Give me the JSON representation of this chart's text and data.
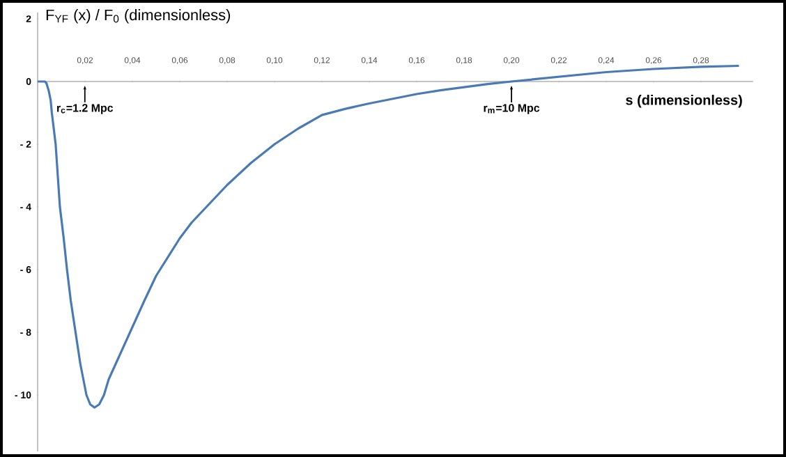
{
  "chart_data": {
    "type": "line",
    "ylabel": "F$_{YF}$ (x) / F$_{0}$      (dimensionless)",
    "xlabel": "s (dimensionless)",
    "annotations": [
      "r$_{c}$=1.2 Mpc",
      {
        "text": "r$_{m}$=10 Mpc",
        "x": 0.2,
        "y": 0
      }
    ],
    "color": "#4a7ab5",
    "x": [
      0,
      0.003,
      0.0037,
      0.0047,
      0.0055,
      0.006,
      0.0068,
      0.0076,
      0.0085,
      0.0094,
      0.011,
      0.0124,
      0.014,
      0.016,
      0.018,
      0.0206,
      0.0222,
      0.024,
      0.026,
      0.028,
      0.03,
      0.033,
      0.039,
      0.045,
      0.05,
      0.06,
      0.065,
      0.07,
      0.075,
      0.08,
      0.09,
      0.1,
      0.11,
      0.12,
      0.13,
      0.14,
      0.15,
      0.16,
      0.17,
      0.18,
      0.19,
      0.2,
      0.22,
      0.24,
      0.26,
      0.28,
      0.296
    ],
    "values": [
      0,
      0,
      -0.05,
      -0.3,
      -0.6,
      -1.0,
      -1.5,
      -2,
      -3,
      -4,
      -5,
      -6,
      -7,
      -8,
      -9,
      -10,
      -10.3,
      -10.4,
      -10.3,
      -10,
      -9.5,
      -9,
      -8,
      -7,
      -6.2,
      -5.0,
      -4.5,
      -4.1,
      -3.7,
      -3.3,
      -2.6,
      -2.0,
      -1.5,
      -1.07,
      -0.87,
      -0.7,
      -0.55,
      -0.4,
      -0.28,
      -0.18,
      -0.08,
      0,
      0.15,
      0.3,
      0.4,
      0.47,
      0.5
    ],
    "xlim": [
      0,
      0.302
    ],
    "ylim": [
      -11.8,
      2.2
    ],
    "xticks": [
      {
        "value": 0.02,
        "label": "0,02"
      },
      {
        "value": 0.04,
        "label": "0,04"
      },
      {
        "value": 0.06,
        "label": "0,06"
      },
      {
        "value": 0.08,
        "label": "0,08"
      },
      {
        "value": 0.1,
        "label": "0,10"
      },
      {
        "value": 0.12,
        "label": "0,12"
      },
      {
        "value": 0.14,
        "label": "0,14"
      },
      {
        "value": 0.16,
        "label": "0,16"
      },
      {
        "value": 0.18,
        "label": "0,18"
      },
      {
        "value": 0.2,
        "label": "0,20"
      },
      {
        "value": 0.22,
        "label": "0,22"
      },
      {
        "value": 0.24,
        "label": "0,24"
      },
      {
        "value": 0.26,
        "label": "0,26"
      },
      {
        "value": 0.28,
        "label": "0,28"
      }
    ],
    "yticks": [
      2,
      0,
      {
        "value": -2,
        "label": "- 2"
      },
      {
        "value": -4,
        "label": "- 4"
      },
      {
        "value": -6,
        "label": "- 6"
      },
      {
        "value": -8,
        "label": "- 8"
      },
      {
        "value": -10,
        "label": "- 10"
      }
    ]
  }
}
